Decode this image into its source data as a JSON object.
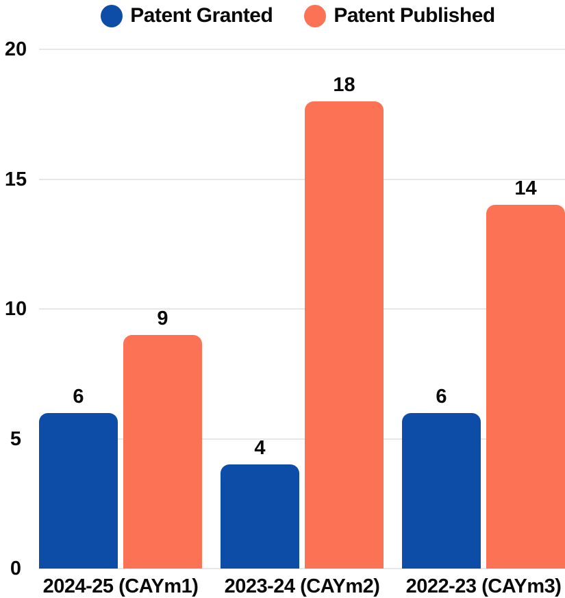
{
  "chart_data": {
    "type": "bar",
    "categories": [
      "2024-25 (CAYm1)",
      "2023-24 (CAYm2)",
      "2022-23 (CAYm3)"
    ],
    "series": [
      {
        "name": "Patent Granted",
        "color": "#0d4da8",
        "values": [
          6,
          4,
          6
        ]
      },
      {
        "name": "Patent Published",
        "color": "#fc7254",
        "values": [
          9,
          18,
          14
        ]
      }
    ],
    "yticks": [
      0,
      5,
      10,
      15,
      20
    ],
    "ylim": [
      0,
      20
    ],
    "grid": true,
    "legend_position": "top",
    "title": "",
    "xlabel": "",
    "ylabel": "",
    "colors": {
      "grid": "#e7e7e7",
      "text": "#0a0a0a",
      "background": "#ffffff"
    }
  }
}
